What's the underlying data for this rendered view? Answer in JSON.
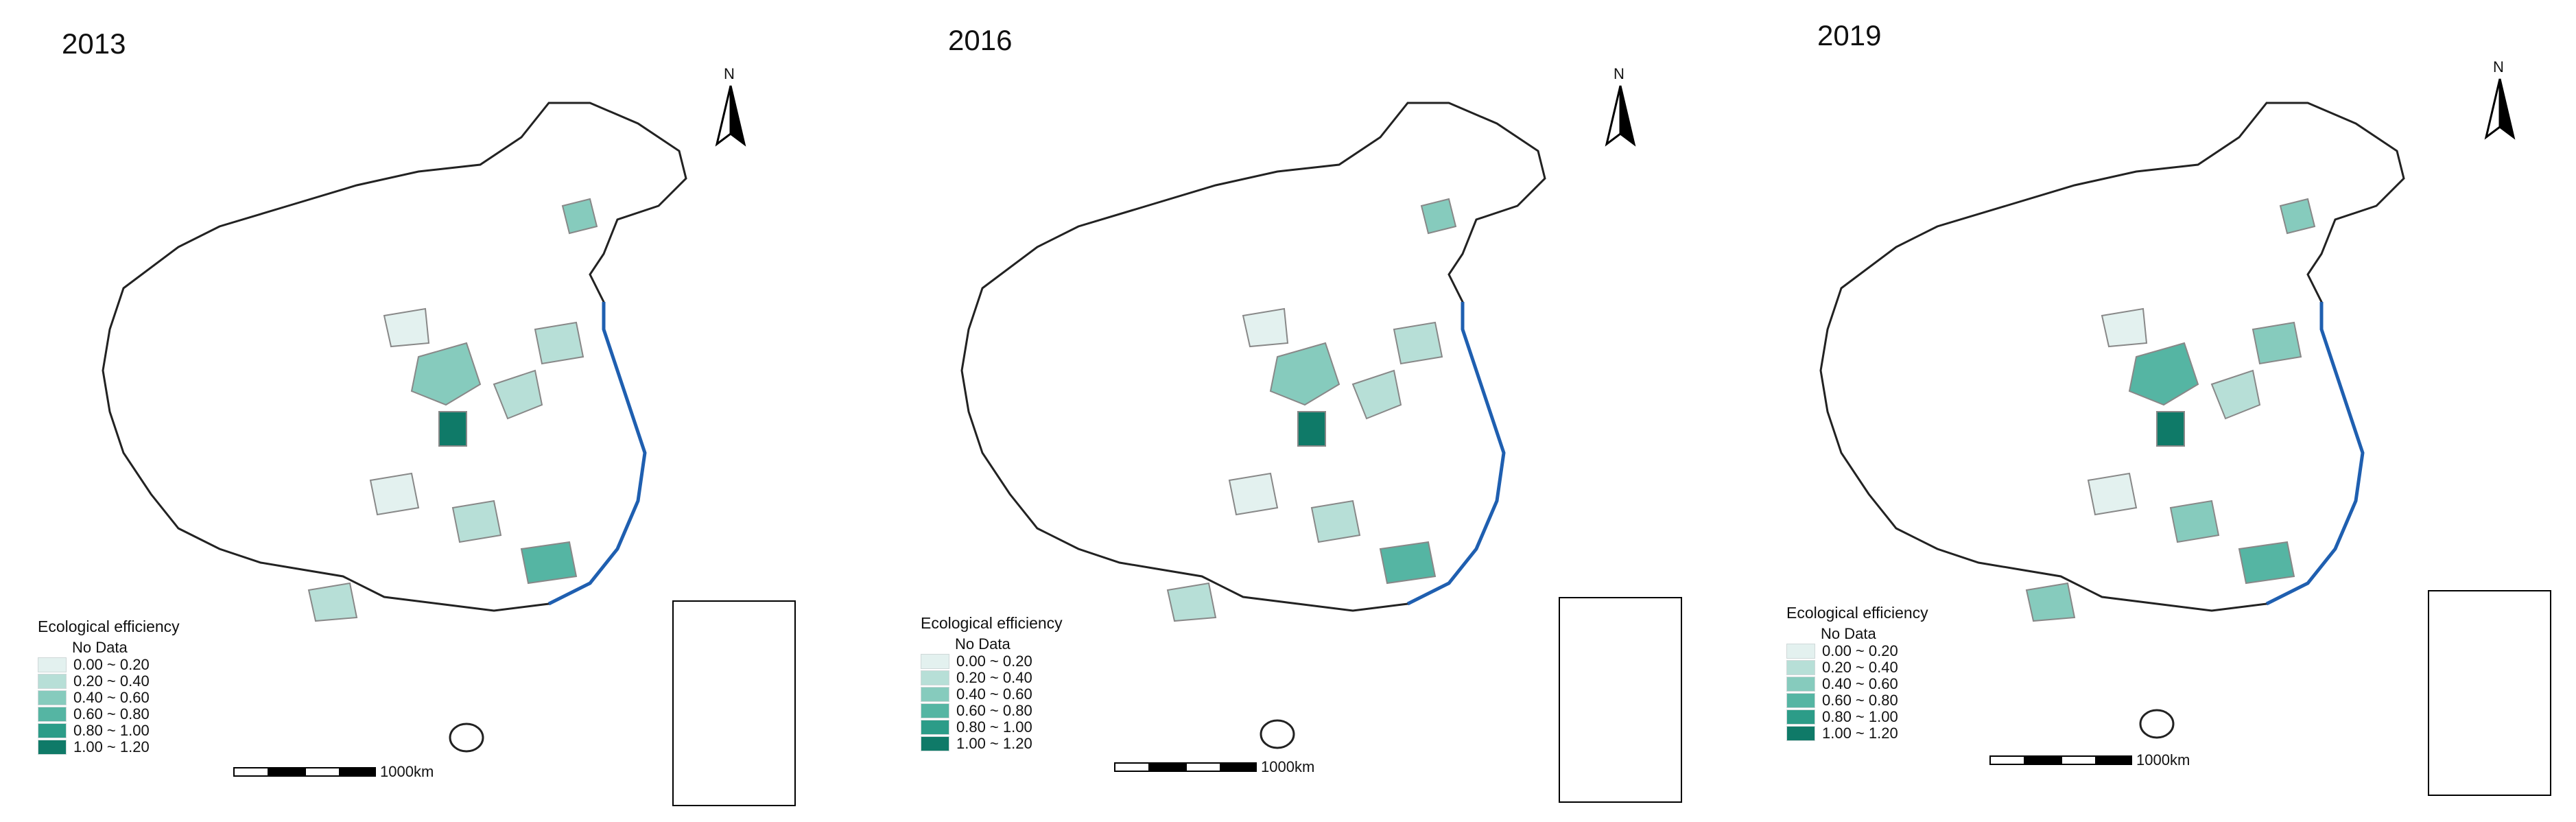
{
  "panels": [
    {
      "year": "2013"
    },
    {
      "year": "2016"
    },
    {
      "year": "2019"
    }
  ],
  "legend": {
    "title": "Ecological efficiency",
    "no_data": "No Data",
    "classes": [
      {
        "label": "0.00 ~ 0.20",
        "color": "#e3f1ef"
      },
      {
        "label": "0.20 ~ 0.40",
        "color": "#b7dfd7"
      },
      {
        "label": "0.40 ~ 0.60",
        "color": "#86cbbd"
      },
      {
        "label": "0.60 ~ 0.80",
        "color": "#55b5a3"
      },
      {
        "label": "0.80 ~ 1.00",
        "color": "#2c9c88"
      },
      {
        "label": "1.00 ~ 1.20",
        "color": "#0f7a68"
      }
    ]
  },
  "scale_label": "1000km",
  "north_label": "N",
  "colors": {
    "coast": "#1f5fb0",
    "border": "#222222",
    "province": "#888888"
  }
}
